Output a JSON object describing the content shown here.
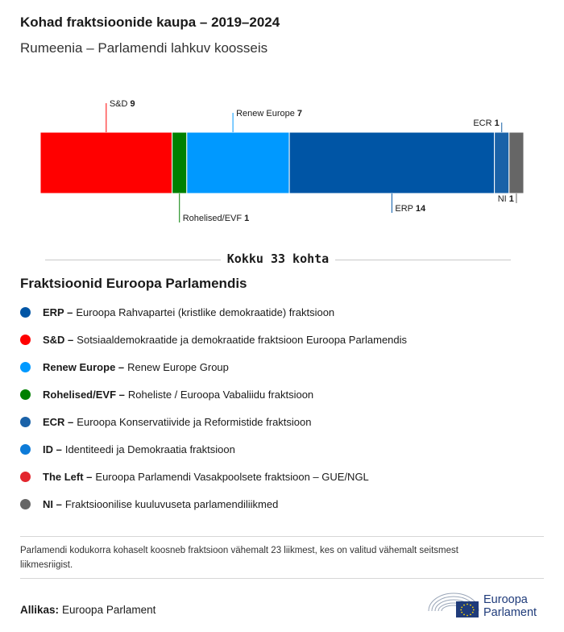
{
  "header": {
    "title": "Kohad fraktsioonide kaupa – 2019–2024",
    "subtitle": "Rumeenia – Parlamendi lahkuv koosseis"
  },
  "chart_data": {
    "type": "bar",
    "orientation": "horizontal-stacked",
    "total_seats": 33,
    "segments": [
      {
        "name": "S&D",
        "value": 9,
        "color": "#ff0000",
        "label_side": "top"
      },
      {
        "name": "Rohelised/EVF",
        "value": 1,
        "color": "#008000",
        "label_side": "bottom"
      },
      {
        "name": "Renew Europe",
        "value": 7,
        "color": "#0099ff",
        "label_side": "top"
      },
      {
        "name": "ERP",
        "value": 14,
        "color": "#0055a5",
        "label_side": "bottom"
      },
      {
        "name": "ECR",
        "value": 1,
        "color": "#1a62a8",
        "label_side": "top"
      },
      {
        "name": "NI",
        "value": 1,
        "color": "#666666",
        "label_side": "bottom"
      }
    ]
  },
  "total": {
    "text": "Kokku 33 kohta"
  },
  "legend": {
    "title": "Fraktsioonid Euroopa Parlamendis",
    "items": [
      {
        "abbr": "ERP –",
        "desc": "Euroopa Rahvapartei (kristlike demokraatide) fraktsioon",
        "color": "#0055a5"
      },
      {
        "abbr": "S&D –",
        "desc": "Sotsiaaldemokraatide ja demokraatide fraktsioon Euroopa Parlamendis",
        "color": "#ff0000"
      },
      {
        "abbr": "Renew Europe –",
        "desc": "Renew Europe Group",
        "color": "#0099ff"
      },
      {
        "abbr": "Rohelised/EVF –",
        "desc": "Roheliste / Euroopa Vabaliidu fraktsioon",
        "color": "#008000"
      },
      {
        "abbr": "ECR –",
        "desc": "Euroopa Konservatiivide ja Reformistide fraktsioon",
        "color": "#1a62a8"
      },
      {
        "abbr": "ID –",
        "desc": "Identiteedi ja Demokraatia fraktsioon",
        "color": "#0d7bd8"
      },
      {
        "abbr": "The Left –",
        "desc": "Euroopa Parlamendi Vasakpoolsete fraktsioon – GUE/NGL",
        "color": "#e3262e"
      },
      {
        "abbr": "NI –",
        "desc": "Fraktsioonilise kuuluvuseta parlamendiliikmed",
        "color": "#666666"
      }
    ]
  },
  "footer": {
    "note": "Parlamendi kodukorra kohaselt koosneb fraktsioon vähemalt 23 liikmest, kes on valitud vähemalt seitsmest liikmesriigist.",
    "source_label": "Allikas:",
    "source_value": "Euroopa Parlament",
    "logo_line1": "Euroopa",
    "logo_line2": "Parlament"
  }
}
